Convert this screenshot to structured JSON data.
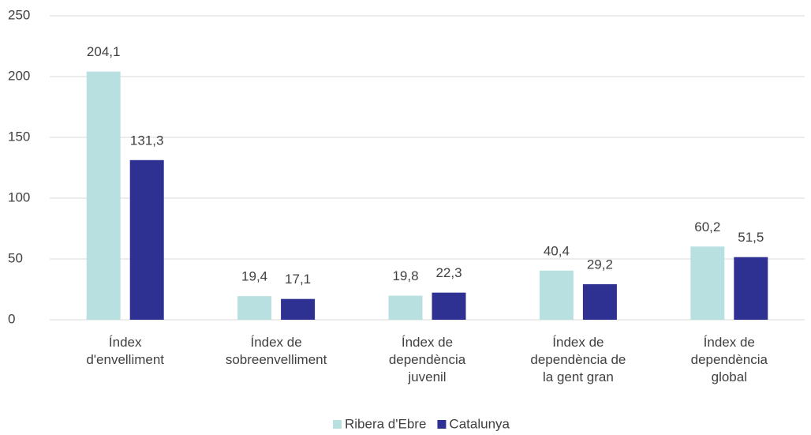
{
  "chart_data": {
    "type": "bar",
    "categories": [
      "Índex\nd'envelliment",
      "Índex de\nsobreenvelliment",
      "Índex de\ndependència\njuvenil",
      "Índex de\ndependència de\nla gent gran",
      "Índex de\ndependència\nglobal"
    ],
    "series": [
      {
        "name": "Ribera d'Ebre",
        "color": "#b8e0e1",
        "values": [
          204.1,
          19.4,
          19.8,
          40.4,
          60.2
        ],
        "value_labels": [
          "204,1",
          "19,4",
          "19,8",
          "40,4",
          "60,2"
        ]
      },
      {
        "name": "Catalunya",
        "color": "#2e3192",
        "values": [
          131.3,
          17.1,
          22.3,
          29.2,
          51.5
        ],
        "value_labels": [
          "131,3",
          "17,1",
          "22,3",
          "29,2",
          "51,5"
        ]
      }
    ],
    "ylim": [
      0,
      250
    ],
    "yticks": [
      0,
      50,
      100,
      150,
      200,
      250
    ],
    "grid": true,
    "legend": "bottom"
  }
}
